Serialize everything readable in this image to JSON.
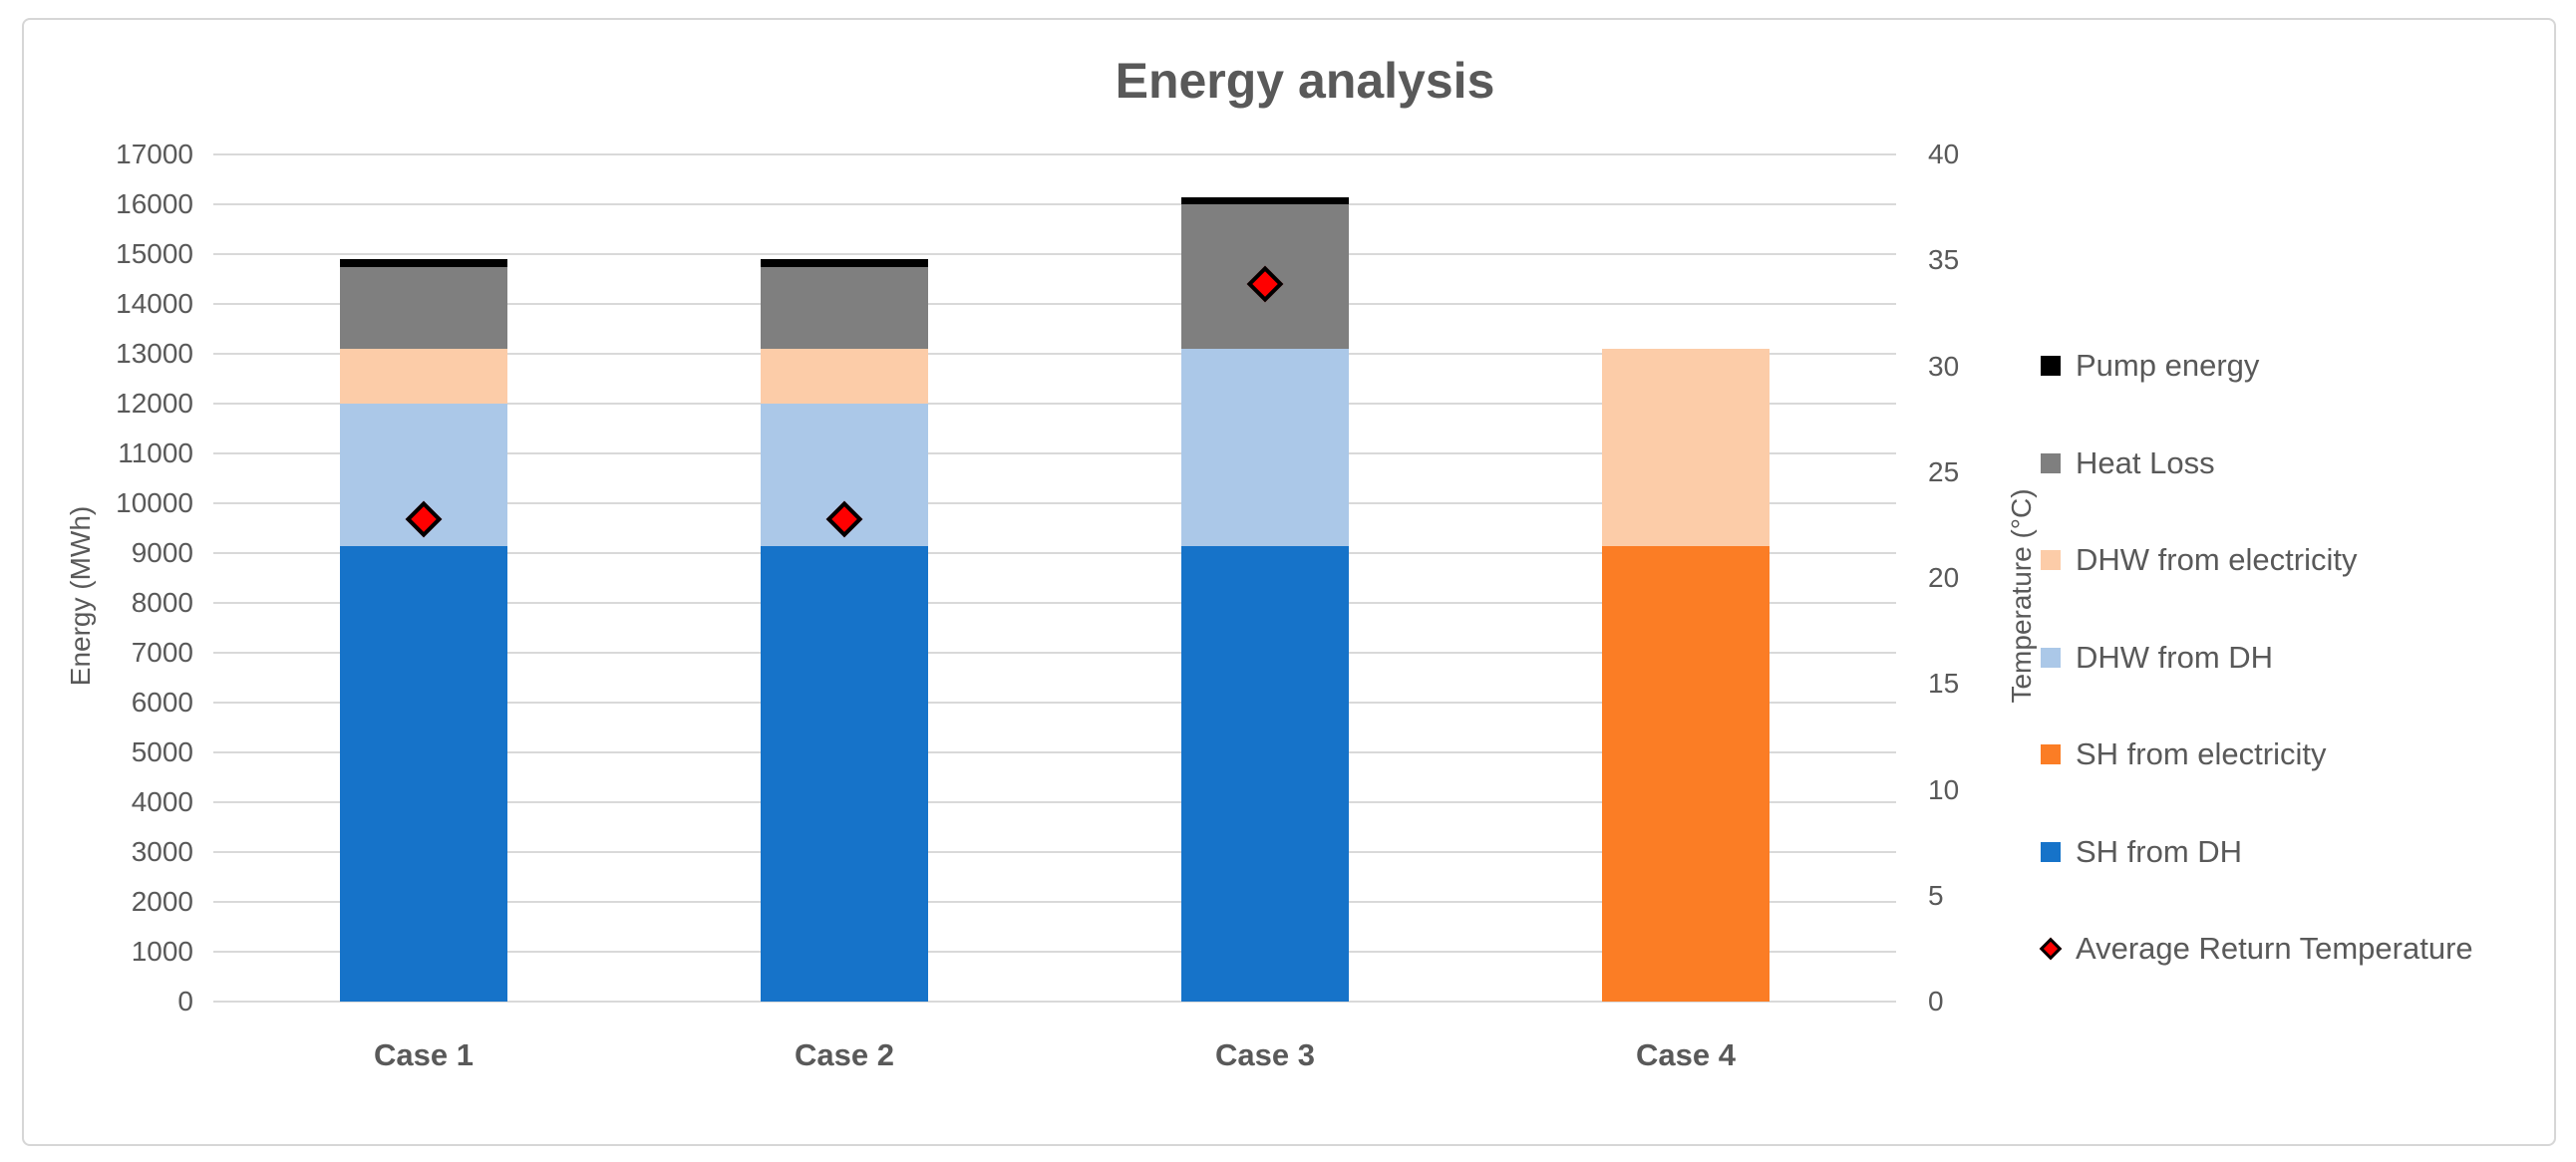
{
  "chart": {
    "background": "#ffffff",
    "frame_border_color": "#d6d6d6",
    "text_color": "#595959",
    "gridline_color": "#d9d9d9"
  },
  "chart_data": {
    "type": "bar",
    "stacked": true,
    "title": "Energy analysis",
    "categories": [
      "Case 1",
      "Case 2",
      "Case 3",
      "Case 4"
    ],
    "series": [
      {
        "name": "SH from DH",
        "color": "#1673c9",
        "values": [
          9150,
          9150,
          9150,
          0
        ]
      },
      {
        "name": "SH from electricity",
        "color": "#fb7d25",
        "values": [
          0,
          0,
          0,
          9150
        ]
      },
      {
        "name": "DHW from DH",
        "color": "#abc8e8",
        "values": [
          2850,
          2850,
          3950,
          0
        ]
      },
      {
        "name": "DHW from electricity",
        "color": "#fccca8",
        "values": [
          1100,
          1100,
          0,
          3950
        ]
      },
      {
        "name": "Heat Loss",
        "color": "#7f7f7f",
        "values": [
          1650,
          1650,
          2900,
          0
        ]
      },
      {
        "name": "Pump energy",
        "color": "#000000",
        "values": [
          150,
          150,
          150,
          0
        ]
      }
    ],
    "marker_series": {
      "name": "Average Return Temperature",
      "marker": "diamond",
      "fill_color": "#ff0000",
      "stroke_color": "#000000",
      "axis": "right",
      "values": [
        22.8,
        22.8,
        33.9,
        null
      ]
    },
    "left_axis": {
      "label": "Energy (MWh)",
      "min": 0,
      "max": 17000,
      "step": 1000
    },
    "right_axis": {
      "label": "Temperature (°C)",
      "min": 0,
      "max": 40,
      "step": 5
    },
    "legend_order": [
      "Pump energy",
      "Heat Loss",
      "DHW from electricity",
      "DHW from DH",
      "SH from electricity",
      "SH from DH",
      "Average Return Temperature"
    ],
    "legend_position": "right",
    "grid": true
  }
}
